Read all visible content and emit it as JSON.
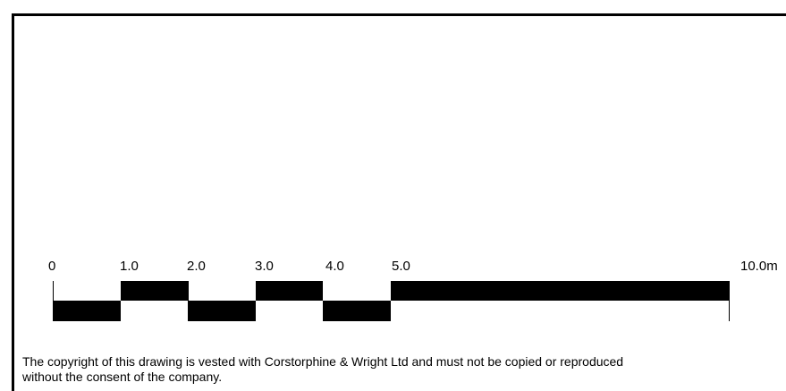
{
  "scale_bar": {
    "labels": [
      "0",
      "1.0",
      "2.0",
      "3.0",
      "4.0",
      "5.0",
      "10.0m"
    ]
  },
  "copyright": {
    "line1": "The copyright of this drawing is vested with Corstorphine & Wright Ltd and must not be copied or reproduced",
    "line2": "without the consent of the company."
  }
}
